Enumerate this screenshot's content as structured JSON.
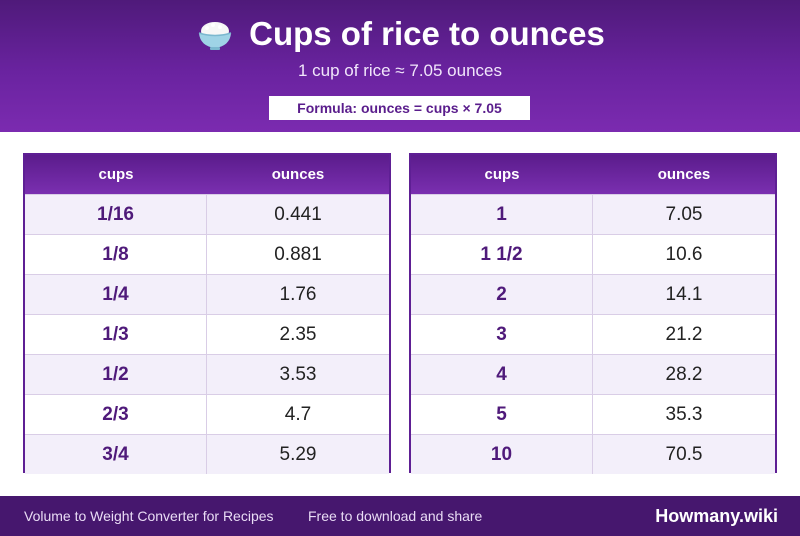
{
  "header": {
    "title": "Cups of rice to ounces",
    "subtitle": "1 cup of rice ≈ 7.05 ounces",
    "formula": "Formula: ounces = cups × 7.05",
    "icon": "rice-bowl-icon"
  },
  "tables": {
    "left": {
      "col_cups": "cups",
      "col_ounces": "ounces",
      "rows": [
        {
          "cups": "1/16",
          "ounces": "0.441"
        },
        {
          "cups": "1/8",
          "ounces": "0.881"
        },
        {
          "cups": "1/4",
          "ounces": "1.76"
        },
        {
          "cups": "1/3",
          "ounces": "2.35"
        },
        {
          "cups": "1/2",
          "ounces": "3.53"
        },
        {
          "cups": "2/3",
          "ounces": "4.7"
        },
        {
          "cups": "3/4",
          "ounces": "5.29"
        }
      ]
    },
    "right": {
      "col_cups": "cups",
      "col_ounces": "ounces",
      "rows": [
        {
          "cups": "1",
          "ounces": "7.05"
        },
        {
          "cups": "1 1/2",
          "ounces": "10.6"
        },
        {
          "cups": "2",
          "ounces": "14.1"
        },
        {
          "cups": "3",
          "ounces": "21.2"
        },
        {
          "cups": "4",
          "ounces": "28.2"
        },
        {
          "cups": "5",
          "ounces": "35.3"
        },
        {
          "cups": "10",
          "ounces": "70.5"
        }
      ]
    }
  },
  "footer": {
    "left_text": "Volume to Weight Converter for Recipes",
    "mid_text": "Free to download and share",
    "brand": "Howmany.wiki"
  },
  "colors": {
    "primary": "#5e1f94",
    "header_dark": "#4f1a7a",
    "stripe": "#f3effa"
  }
}
